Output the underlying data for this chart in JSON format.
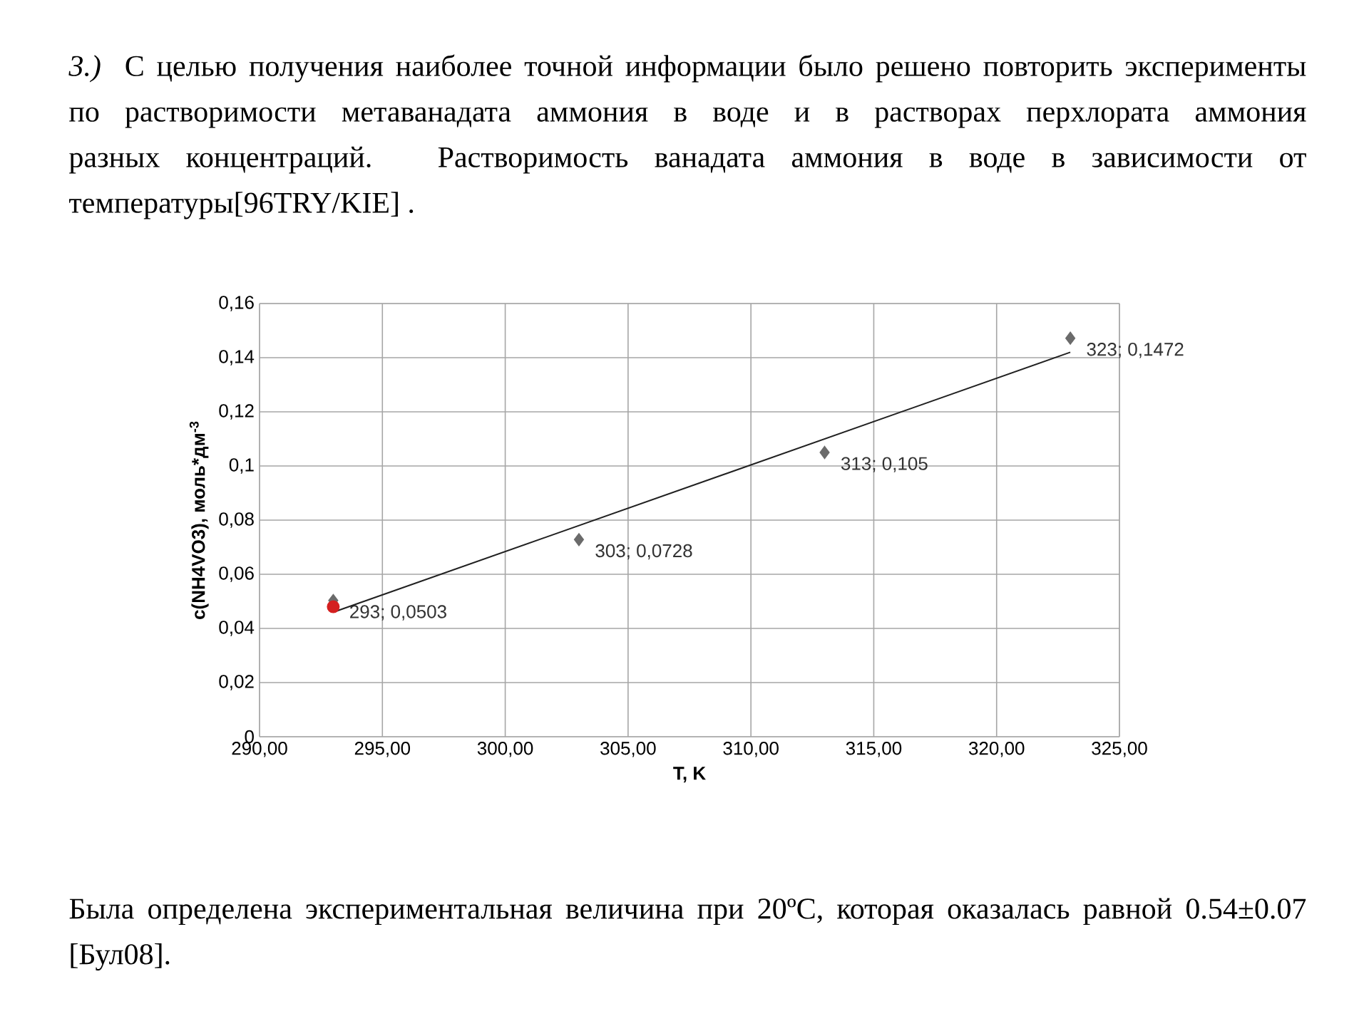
{
  "chart_data": {
    "type": "scatter",
    "title": "*3.)* С целью получения наиболее точной информации было решено повторить эксперименты по растворимости метаванадата аммония в воде и в растворах перхлората аммония разных концентраций. Растворимость ванадата аммония в воде в зависимости от температуры[96TRY/KIE] .",
    "annotations": [
      "Была определена экспериментальная величина при 20ºC, которая оказалась равной 0.54±0.07 [Бул08]."
    ],
    "xlabel": "T, K",
    "ylabel": "c(NH4VO3), моль*дм$^{-3}$",
    "xlim": [
      290,
      325
    ],
    "ylim": [
      0,
      0.16
    ],
    "xticks": [
      {
        "value": 290,
        "label": "290,00"
      },
      {
        "value": 295,
        "label": "295,00"
      },
      {
        "value": 300,
        "label": "300,00"
      },
      {
        "value": 305,
        "label": "305,00"
      },
      {
        "value": 310,
        "label": "310,00"
      },
      {
        "value": 315,
        "label": "315,00"
      },
      {
        "value": 320,
        "label": "320,00"
      },
      {
        "value": 325,
        "label": "325,00"
      }
    ],
    "yticks": [
      0,
      {
        "value": 0.02,
        "label": "0,02"
      },
      {
        "value": 0.04,
        "label": "0,04"
      },
      {
        "value": 0.06,
        "label": "0,06"
      },
      {
        "value": 0.08,
        "label": "0,08"
      },
      {
        "value": 0.1,
        "label": "0,1"
      },
      {
        "value": 0.12,
        "label": "0,12"
      },
      {
        "value": 0.14,
        "label": "0,14"
      },
      {
        "value": 0.16,
        "label": "0,16"
      }
    ],
    "grid": true,
    "series": [
      {
        "marker": "diamond",
        "color": "#6b6b6b",
        "x": [
          293,
          303,
          313,
          323
        ],
        "values": [
          0.0503,
          0.0728,
          0.105,
          0.1472
        ],
        "value_labels": [
          "293; 0,0503",
          "303; 0,0728",
          "313; 0,105",
          "323; 0,1472"
        ]
      },
      {
        "marker": "circle",
        "color": "#d42020",
        "x": [
          293
        ],
        "values": [
          0.048
        ]
      },
      {
        "type": "line",
        "marker": "none",
        "color": "#202020",
        "x": [
          293,
          323
        ],
        "values": [
          0.046,
          0.142
        ]
      }
    ]
  }
}
